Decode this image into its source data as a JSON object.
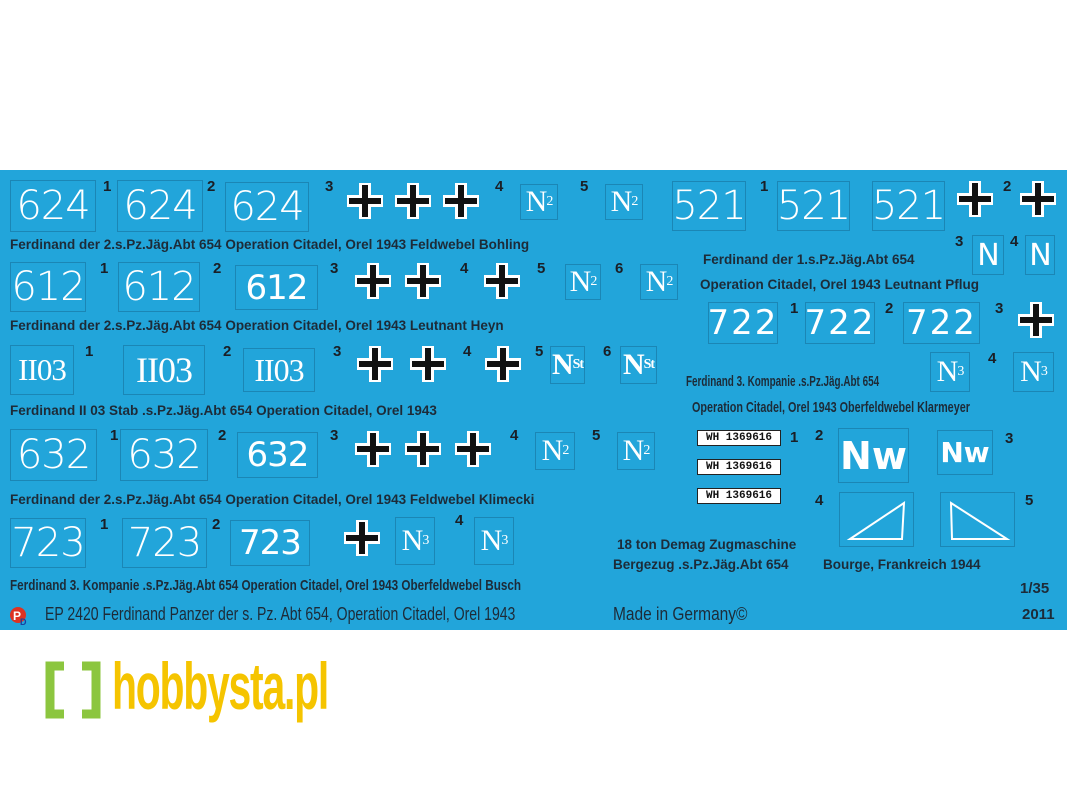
{
  "sheet": {
    "background": "#22a5da",
    "cross_colors": [
      "#111111",
      "#ffffff"
    ]
  },
  "r1": {
    "code": "624",
    "n": [
      "1",
      "2",
      "3",
      "4",
      "5"
    ],
    "mark": {
      "main": "N",
      "sub": "2"
    },
    "caption": "Ferdinand der 2.s.Pz.Jäg.Abt 654 Operation Citadel, Orel 1943 Feldwebel Bohling"
  },
  "r2": {
    "code": "612",
    "n": [
      "1",
      "2",
      "3",
      "4",
      "5",
      "6"
    ],
    "mark": {
      "main": "N",
      "sub": "2"
    },
    "caption": "Ferdinand der 2.s.Pz.Jäg.Abt 654 Operation Citadel, Orel 1943 Leutnant Heyn"
  },
  "r3": {
    "code": "II03",
    "n": [
      "1",
      "2",
      "3",
      "4",
      "5",
      "6"
    ],
    "mark": {
      "main": "N",
      "sub": "St"
    },
    "caption": "Ferdinand II 03 Stab .s.Pz.Jäg.Abt 654 Operation Citadel, Orel 1943"
  },
  "r4": {
    "code": "632",
    "n": [
      "1",
      "2",
      "3",
      "4",
      "5"
    ],
    "mark": {
      "main": "N",
      "sub": "2"
    },
    "caption": "Ferdinand der 2.s.Pz.Jäg.Abt 654 Operation Citadel, Orel 1943 Feldwebel Klimecki"
  },
  "r5": {
    "code": "723",
    "n": [
      "1",
      "2",
      "4"
    ],
    "mark": {
      "main": "N",
      "sub": "3"
    },
    "caption": "Ferdinand 3. Kompanie .s.Pz.Jäg.Abt 654 Operation Citadel, Orel 1943 Oberfeldwebel Busch"
  },
  "r6": {
    "code": "521",
    "n": [
      "1",
      "2",
      "3",
      "4"
    ],
    "mark": {
      "main": "N"
    },
    "caption1": "Ferdinand der 1.s.Pz.Jäg.Abt 654",
    "caption2": "Operation Citadel, Orel 1943 Leutnant Pflug"
  },
  "r7": {
    "code": "722",
    "n": [
      "1",
      "2",
      "3",
      "4"
    ],
    "mark": {
      "main": "N",
      "sub": "3"
    },
    "caption1": "Ferdinand 3. Kompanie .s.Pz.Jäg.Abt 654",
    "caption2": "Operation Citadel, Orel 1943 Oberfeldwebel Klarmeyer"
  },
  "r8": {
    "plate": "WH 1369616",
    "n": [
      "1",
      "2",
      "3",
      "4",
      "5"
    ],
    "mark": "Nw",
    "caption1": "18 ton Demag Zugmaschine",
    "caption2": "Bergezug .s.Pz.Jäg.Abt 654",
    "caption3": "Bourge, Frankreich 1944"
  },
  "footer": {
    "title": "EP 2420 Ferdinand Panzer der s. Pz. Abt 654, Operation Citadel, Orel 1943",
    "made": "Made in Germany©",
    "scale": "1/35",
    "year": "2011"
  },
  "watermark": {
    "text": "hobbysta.pl",
    "color": "#f5c400",
    "bracket_color": "#8cc63f"
  }
}
